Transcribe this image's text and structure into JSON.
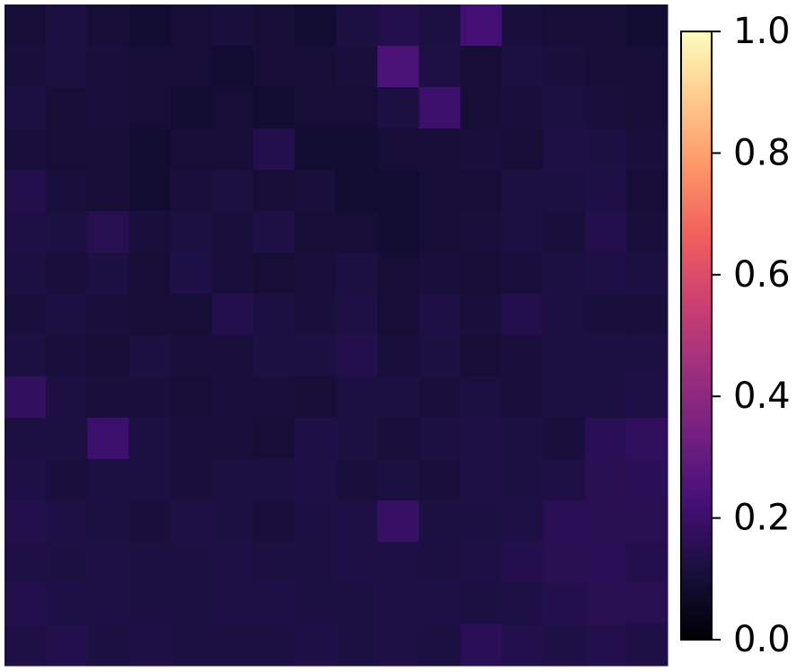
{
  "chart_data": {
    "type": "heatmap",
    "colormap": "magma",
    "values": [
      [
        0.1,
        0.12,
        0.1,
        0.09,
        0.1,
        0.11,
        0.1,
        0.09,
        0.12,
        0.14,
        0.12,
        0.22,
        0.11,
        0.1,
        0.1,
        0.09
      ],
      [
        0.11,
        0.12,
        0.11,
        0.1,
        0.1,
        0.09,
        0.1,
        0.1,
        0.11,
        0.24,
        0.13,
        0.1,
        0.12,
        0.11,
        0.1,
        0.1
      ],
      [
        0.12,
        0.1,
        0.11,
        0.1,
        0.09,
        0.1,
        0.09,
        0.1,
        0.1,
        0.12,
        0.2,
        0.1,
        0.11,
        0.12,
        0.11,
        0.1
      ],
      [
        0.11,
        0.1,
        0.1,
        0.09,
        0.1,
        0.1,
        0.14,
        0.09,
        0.09,
        0.1,
        0.1,
        0.11,
        0.1,
        0.13,
        0.12,
        0.11
      ],
      [
        0.14,
        0.11,
        0.1,
        0.09,
        0.11,
        0.12,
        0.1,
        0.11,
        0.09,
        0.09,
        0.1,
        0.1,
        0.12,
        0.12,
        0.13,
        0.1
      ],
      [
        0.13,
        0.12,
        0.15,
        0.11,
        0.12,
        0.11,
        0.13,
        0.1,
        0.1,
        0.09,
        0.1,
        0.11,
        0.12,
        0.11,
        0.14,
        0.11
      ],
      [
        0.12,
        0.11,
        0.12,
        0.1,
        0.13,
        0.11,
        0.1,
        0.11,
        0.12,
        0.1,
        0.11,
        0.1,
        0.11,
        0.12,
        0.13,
        0.12
      ],
      [
        0.11,
        0.12,
        0.11,
        0.1,
        0.1,
        0.14,
        0.12,
        0.11,
        0.13,
        0.1,
        0.13,
        0.11,
        0.14,
        0.12,
        0.11,
        0.11
      ],
      [
        0.12,
        0.11,
        0.1,
        0.12,
        0.11,
        0.11,
        0.12,
        0.12,
        0.14,
        0.11,
        0.12,
        0.1,
        0.11,
        0.12,
        0.12,
        0.12
      ],
      [
        0.18,
        0.12,
        0.11,
        0.11,
        0.1,
        0.11,
        0.11,
        0.1,
        0.12,
        0.12,
        0.11,
        0.12,
        0.11,
        0.12,
        0.12,
        0.13
      ],
      [
        0.12,
        0.12,
        0.2,
        0.12,
        0.11,
        0.11,
        0.1,
        0.13,
        0.12,
        0.11,
        0.12,
        0.13,
        0.12,
        0.11,
        0.16,
        0.17
      ],
      [
        0.13,
        0.11,
        0.12,
        0.12,
        0.11,
        0.12,
        0.12,
        0.13,
        0.11,
        0.12,
        0.11,
        0.13,
        0.12,
        0.13,
        0.15,
        0.16
      ],
      [
        0.14,
        0.13,
        0.12,
        0.11,
        0.13,
        0.12,
        0.11,
        0.12,
        0.13,
        0.19,
        0.12,
        0.12,
        0.13,
        0.16,
        0.15,
        0.15
      ],
      [
        0.13,
        0.12,
        0.13,
        0.12,
        0.12,
        0.13,
        0.12,
        0.12,
        0.13,
        0.13,
        0.12,
        0.13,
        0.14,
        0.15,
        0.16,
        0.14
      ],
      [
        0.14,
        0.13,
        0.13,
        0.12,
        0.12,
        0.13,
        0.13,
        0.12,
        0.12,
        0.13,
        0.13,
        0.12,
        0.13,
        0.14,
        0.15,
        0.15
      ],
      [
        0.13,
        0.14,
        0.12,
        0.13,
        0.12,
        0.12,
        0.12,
        0.13,
        0.12,
        0.13,
        0.12,
        0.16,
        0.14,
        0.13,
        0.14,
        0.13
      ]
    ],
    "zlim": [
      0,
      1
    ],
    "zticks": [
      {
        "value": 0,
        "label": "0.0"
      },
      0.2,
      0.4,
      0.6,
      0.8,
      {
        "value": 1,
        "label": "1.0"
      }
    ]
  }
}
